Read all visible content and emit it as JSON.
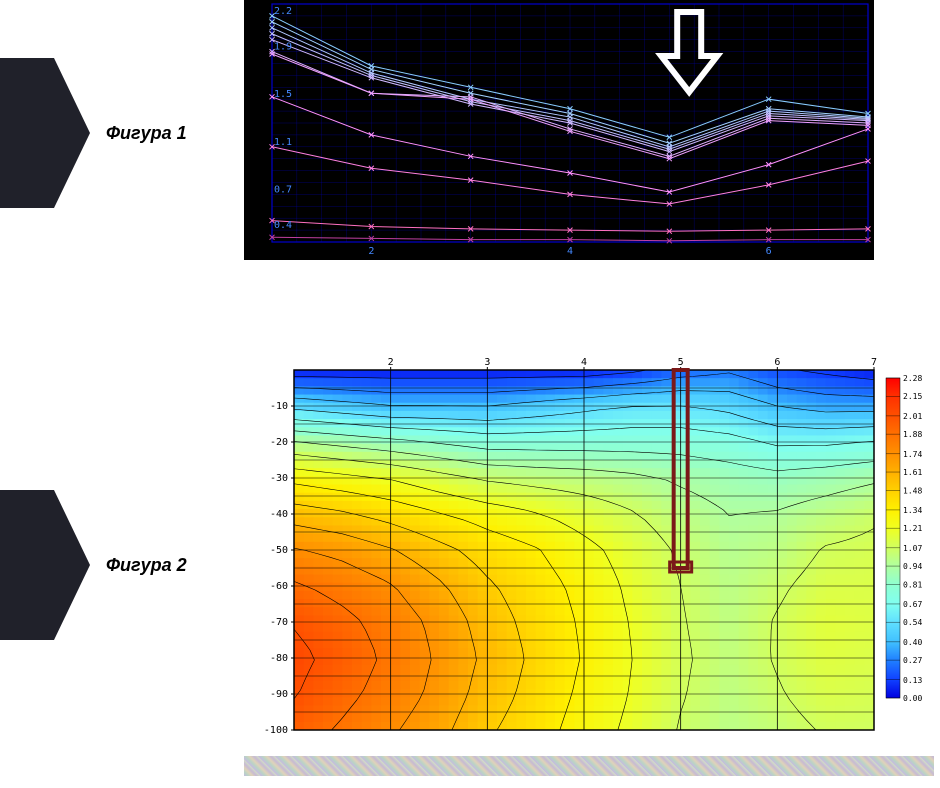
{
  "labels": {
    "figure1": "Фигура 1",
    "figure2": "Фигура 2"
  },
  "figure1": {
    "type": "line",
    "background_color": "#000000",
    "grid_color": "#0000aa",
    "axis_color": "#0000cc",
    "tick_label_color": "#4488ff",
    "label_fontsize": 10,
    "xlim": [
      1,
      7
    ],
    "ylim": [
      0.3,
      2.3
    ],
    "x_ticks": [
      2,
      4,
      6
    ],
    "y_ticks": [
      0.4,
      0.7,
      1.1,
      1.5,
      1.9,
      2.2
    ],
    "arrow": {
      "x": 5.2,
      "color": "#ffffff",
      "stroke_width": 6
    },
    "x_nodes": [
      1,
      2,
      3,
      4,
      5,
      6,
      7
    ],
    "series": [
      {
        "color": "#88ccff",
        "y": [
          2.2,
          1.78,
          1.6,
          1.42,
          1.18,
          1.5,
          1.38
        ]
      },
      {
        "color": "#a0d0ff",
        "y": [
          2.15,
          1.75,
          1.55,
          1.38,
          1.13,
          1.42,
          1.35
        ]
      },
      {
        "color": "#b0c8ff",
        "y": [
          2.1,
          1.72,
          1.5,
          1.35,
          1.1,
          1.4,
          1.34
        ]
      },
      {
        "color": "#c0c0ff",
        "y": [
          2.05,
          1.7,
          1.48,
          1.32,
          1.08,
          1.38,
          1.33
        ]
      },
      {
        "color": "#d0b8ff",
        "y": [
          2.0,
          1.68,
          1.46,
          1.3,
          1.06,
          1.36,
          1.32
        ]
      },
      {
        "color": "#e0b0ff",
        "y": [
          1.9,
          1.55,
          1.52,
          1.25,
          1.02,
          1.34,
          1.3
        ]
      },
      {
        "color": "#f0a0ff",
        "y": [
          1.88,
          1.55,
          1.5,
          1.23,
          1.0,
          1.32,
          1.28
        ]
      },
      {
        "color": "#ff90ff",
        "y": [
          1.52,
          1.2,
          1.02,
          0.88,
          0.72,
          0.95,
          1.25
        ]
      },
      {
        "color": "#ff80e0",
        "y": [
          1.1,
          0.92,
          0.82,
          0.7,
          0.62,
          0.78,
          0.98
        ]
      },
      {
        "color": "#ff70c0",
        "y": [
          0.48,
          0.43,
          0.41,
          0.4,
          0.39,
          0.4,
          0.41
        ]
      },
      {
        "color": "#c040a0",
        "y": [
          0.34,
          0.33,
          0.32,
          0.32,
          0.31,
          0.32,
          0.32
        ]
      }
    ],
    "marker": "x",
    "line_width": 1
  },
  "figure2": {
    "type": "heatmap",
    "background_color": "#ffffff",
    "axis_color": "#000000",
    "grid_color": "#000000",
    "label_fontsize": 10,
    "xlim": [
      1,
      7
    ],
    "ylim": [
      -100,
      0
    ],
    "x_ticks": [
      2,
      3,
      4,
      5,
      6,
      7
    ],
    "y_ticks": [
      -10,
      -20,
      -30,
      -40,
      -50,
      -60,
      -70,
      -80,
      -90,
      -100
    ],
    "colorscale": [
      {
        "v": 2.28,
        "c": "#ff0000"
      },
      {
        "v": 2.15,
        "c": "#ff3000"
      },
      {
        "v": 2.01,
        "c": "#ff5000"
      },
      {
        "v": 1.88,
        "c": "#ff7000"
      },
      {
        "v": 1.74,
        "c": "#ff9000"
      },
      {
        "v": 1.61,
        "c": "#ffb000"
      },
      {
        "v": 1.48,
        "c": "#ffd000"
      },
      {
        "v": 1.34,
        "c": "#fff000"
      },
      {
        "v": 1.21,
        "c": "#f0ff20"
      },
      {
        "v": 1.07,
        "c": "#d0ff60"
      },
      {
        "v": 0.94,
        "c": "#b0ffa0"
      },
      {
        "v": 0.81,
        "c": "#90ffd0"
      },
      {
        "v": 0.67,
        "c": "#80fff0"
      },
      {
        "v": 0.54,
        "c": "#60e0ff"
      },
      {
        "v": 0.4,
        "c": "#40c0ff"
      },
      {
        "v": 0.27,
        "c": "#2080ff"
      },
      {
        "v": 0.13,
        "c": "#1040ff"
      },
      {
        "v": 0.0,
        "c": "#0000e0"
      }
    ],
    "grid_vals": {
      "x": [
        1.0,
        1.5,
        2.0,
        2.5,
        3.0,
        3.5,
        4.0,
        4.5,
        5.0,
        5.5,
        6.0,
        6.5,
        7.0
      ],
      "y": [
        0,
        -10,
        -20,
        -30,
        -40,
        -50,
        -60,
        -70,
        -80,
        -90,
        -100
      ],
      "z": [
        [
          0.05,
          0.05,
          0.05,
          0.05,
          0.05,
          0.05,
          0.05,
          0.1,
          0.2,
          0.25,
          0.15,
          0.1,
          0.05
        ],
        [
          0.5,
          0.45,
          0.4,
          0.4,
          0.4,
          0.45,
          0.5,
          0.55,
          0.55,
          0.5,
          0.4,
          0.35,
          0.35
        ],
        [
          0.95,
          0.9,
          0.85,
          0.8,
          0.75,
          0.75,
          0.75,
          0.75,
          0.75,
          0.72,
          0.65,
          0.65,
          0.68
        ],
        [
          1.3,
          1.25,
          1.2,
          1.12,
          1.05,
          1.02,
          1.0,
          0.97,
          0.92,
          0.88,
          0.85,
          0.88,
          0.92
        ],
        [
          1.55,
          1.5,
          1.43,
          1.35,
          1.28,
          1.22,
          1.15,
          1.08,
          1.0,
          0.94,
          0.95,
          1.0,
          1.05
        ],
        [
          1.75,
          1.7,
          1.62,
          1.52,
          1.42,
          1.35,
          1.25,
          1.15,
          1.05,
          0.97,
          1.0,
          1.08,
          1.1
        ],
        [
          1.9,
          1.83,
          1.75,
          1.63,
          1.5,
          1.4,
          1.3,
          1.18,
          1.07,
          0.99,
          1.05,
          1.12,
          1.12
        ],
        [
          2.0,
          1.92,
          1.82,
          1.7,
          1.55,
          1.43,
          1.32,
          1.2,
          1.08,
          1.0,
          1.08,
          1.15,
          1.13
        ],
        [
          2.05,
          1.96,
          1.85,
          1.72,
          1.58,
          1.45,
          1.33,
          1.21,
          1.09,
          1.01,
          1.08,
          1.14,
          1.12
        ],
        [
          2.02,
          1.92,
          1.82,
          1.7,
          1.55,
          1.43,
          1.31,
          1.2,
          1.08,
          1.0,
          1.06,
          1.12,
          1.1
        ],
        [
          1.95,
          1.86,
          1.76,
          1.65,
          1.5,
          1.4,
          1.28,
          1.18,
          1.06,
          0.99,
          1.03,
          1.08,
          1.07
        ]
      ]
    },
    "contour_levels": [
      0.13,
      0.27,
      0.4,
      0.54,
      0.67,
      0.81,
      0.94,
      1.07,
      1.21,
      1.34,
      1.48,
      1.61,
      1.74,
      1.88,
      2.01
    ],
    "probe": {
      "x": 5.0,
      "y_top": 0,
      "y_bot": -55,
      "color": "#7a1818",
      "width": 14
    }
  }
}
